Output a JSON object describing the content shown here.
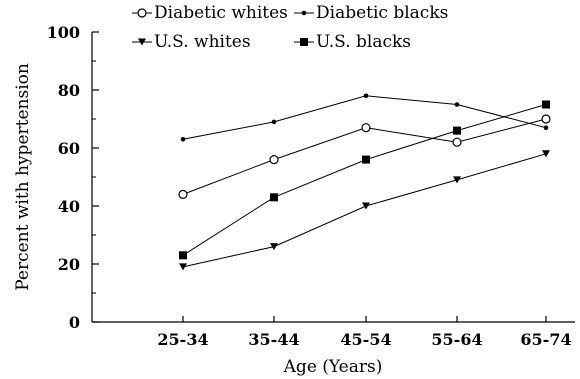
{
  "chart_data": {
    "type": "line",
    "xlabel": "Age (Years)",
    "ylabel": "Percent with hypertension",
    "ylim": [
      0,
      100
    ],
    "y_ticks": [
      0,
      20,
      40,
      60,
      80,
      100
    ],
    "categories": [
      "25-34",
      "35-44",
      "45-54",
      "55-64",
      "65-74"
    ],
    "grid": false,
    "legend_position": "top",
    "series": [
      {
        "name": "Diabetic whites",
        "marker": "open-circle",
        "values": [
          44,
          56,
          67,
          62,
          70
        ]
      },
      {
        "name": "Diabetic blacks",
        "marker": "small-dot",
        "values": [
          63,
          69,
          78,
          75,
          67
        ]
      },
      {
        "name": "U.S. whites",
        "marker": "down-triangle",
        "values": [
          19,
          26,
          40,
          49,
          58
        ]
      },
      {
        "name": "U.S. blacks",
        "marker": "filled-square",
        "values": [
          23,
          43,
          56,
          66,
          75
        ]
      }
    ]
  }
}
